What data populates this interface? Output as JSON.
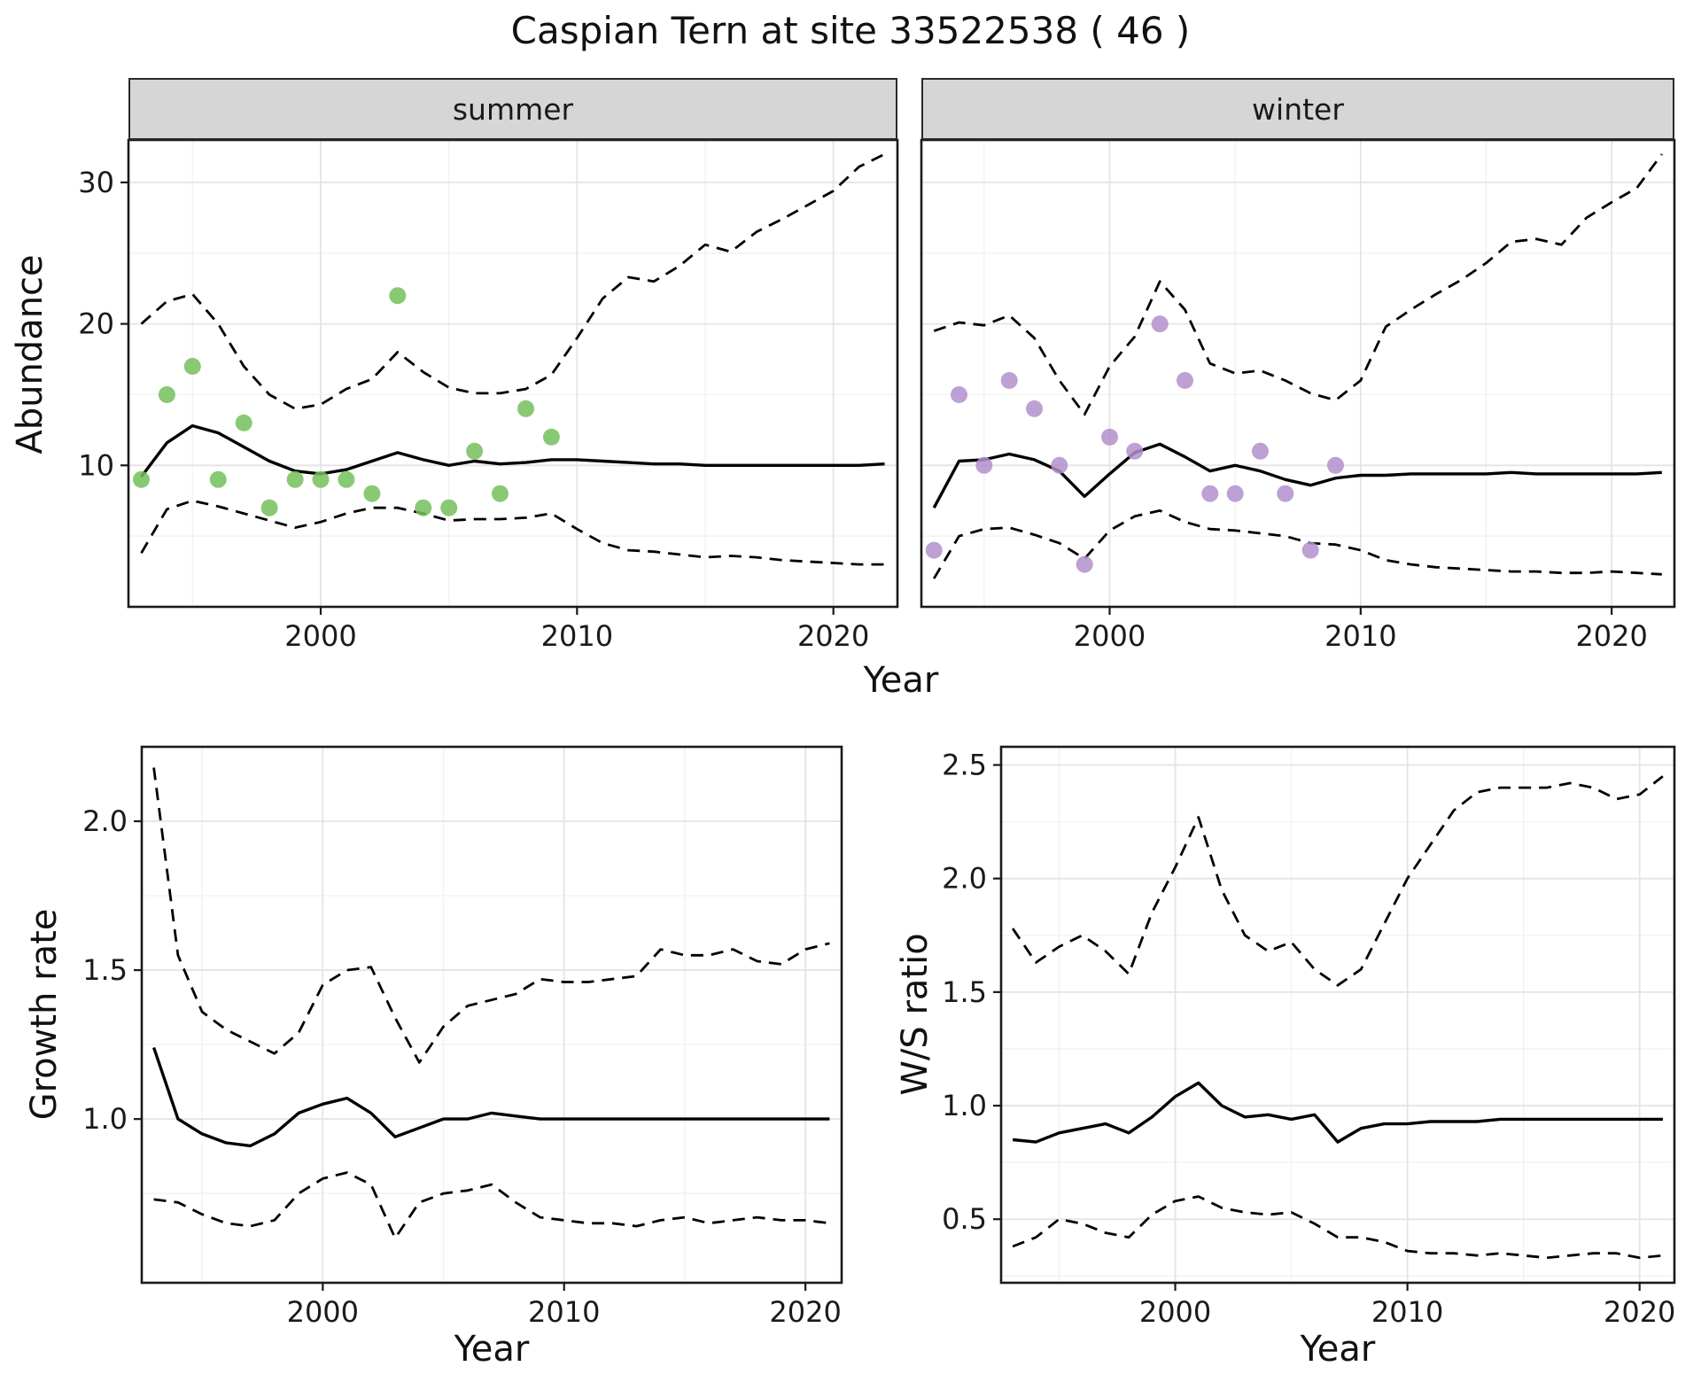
{
  "title": "Caspian Tern at site 33522538 ( 46 )",
  "colors": {
    "summer_points": "#74bf5c",
    "winter_points": "#b28fcd",
    "line": "#000000",
    "grid_major": "#e4e4e4",
    "grid_minor": "#f2f2f2",
    "strip_bg": "#d6d6d6",
    "panel_border": "#1a1a1a"
  },
  "chart_data": [
    {
      "id": "summer_abundance",
      "type": "scatter+line",
      "facet": "summer",
      "xlabel": "Year",
      "ylabel": "Abundance",
      "xlim": [
        1992.5,
        2022.5
      ],
      "ylim": [
        0,
        33
      ],
      "xticks": [
        2000,
        2010,
        2020
      ],
      "xtick_labels": [
        "2000",
        "2010",
        "2020"
      ],
      "yticks": [
        10,
        20,
        30
      ],
      "ytick_labels": [
        "10",
        "20",
        "30"
      ],
      "points": {
        "color": "#74bf5c",
        "years": [
          1993,
          1994,
          1995,
          1996,
          1997,
          1998,
          1999,
          2000,
          2001,
          2002,
          2003,
          2004,
          2005,
          2006,
          2007,
          2008,
          2009
        ],
        "values": [
          9,
          15,
          17,
          9,
          13,
          7,
          9,
          9,
          9,
          8,
          22,
          7,
          7,
          11,
          8,
          14,
          12
        ]
      },
      "series": [
        {
          "name": "median_fit",
          "style": "solid",
          "years": [
            1993,
            1994,
            1995,
            1996,
            1997,
            1998,
            1999,
            2000,
            2001,
            2002,
            2003,
            2004,
            2005,
            2006,
            2007,
            2008,
            2009,
            2010,
            2011,
            2012,
            2013,
            2014,
            2015,
            2016,
            2017,
            2018,
            2019,
            2020,
            2021,
            2022
          ],
          "values": [
            9.2,
            11.6,
            12.8,
            12.3,
            11.3,
            10.3,
            9.6,
            9.4,
            9.7,
            10.3,
            10.9,
            10.4,
            10.0,
            10.3,
            10.1,
            10.2,
            10.4,
            10.4,
            10.3,
            10.2,
            10.1,
            10.1,
            10.0,
            10.0,
            10.0,
            10.0,
            10.0,
            10.0,
            10.0,
            10.1
          ]
        },
        {
          "name": "upper_ci",
          "style": "dashed",
          "years": [
            1993,
            1994,
            1995,
            1996,
            1997,
            1998,
            1999,
            2000,
            2001,
            2002,
            2003,
            2004,
            2005,
            2006,
            2007,
            2008,
            2009,
            2010,
            2011,
            2012,
            2013,
            2014,
            2015,
            2016,
            2017,
            2018,
            2019,
            2020,
            2021,
            2022
          ],
          "values": [
            20.0,
            21.6,
            22.1,
            20.0,
            17.0,
            15.0,
            14.0,
            14.3,
            15.4,
            16.1,
            18.0,
            16.6,
            15.5,
            15.1,
            15.1,
            15.4,
            16.4,
            19.0,
            21.8,
            23.3,
            23.0,
            24.1,
            25.6,
            25.1,
            26.5,
            27.4,
            28.4,
            29.4,
            31.1,
            32.0
          ]
        },
        {
          "name": "lower_ci",
          "style": "dashed",
          "years": [
            1993,
            1994,
            1995,
            1996,
            1997,
            1998,
            1999,
            2000,
            2001,
            2002,
            2003,
            2004,
            2005,
            2006,
            2007,
            2008,
            2009,
            2010,
            2011,
            2012,
            2013,
            2014,
            2015,
            2016,
            2017,
            2018,
            2019,
            2020,
            2021,
            2022
          ],
          "values": [
            3.8,
            6.9,
            7.5,
            7.1,
            6.6,
            6.1,
            5.6,
            6.0,
            6.6,
            7.0,
            7.0,
            6.6,
            6.1,
            6.2,
            6.2,
            6.3,
            6.6,
            5.5,
            4.5,
            4.0,
            3.9,
            3.7,
            3.5,
            3.6,
            3.5,
            3.3,
            3.2,
            3.1,
            3.0,
            3.0
          ]
        }
      ]
    },
    {
      "id": "winter_abundance",
      "type": "scatter+line",
      "facet": "winter",
      "xlabel": "Year",
      "ylabel": "Abundance",
      "xlim": [
        1992.5,
        2022.5
      ],
      "ylim": [
        0,
        33
      ],
      "xticks": [
        2000,
        2010,
        2020
      ],
      "xtick_labels": [
        "2000",
        "2010",
        "2020"
      ],
      "yticks": [
        10,
        20,
        30
      ],
      "ytick_labels": [
        "10",
        "20",
        "30"
      ],
      "points": {
        "color": "#b28fcd",
        "years": [
          1993,
          1994,
          1995,
          1996,
          1997,
          1998,
          1999,
          2000,
          2001,
          2002,
          2003,
          2004,
          2005,
          2006,
          2007,
          2008,
          2009
        ],
        "values": [
          4,
          15,
          10,
          16,
          14,
          10,
          3,
          12,
          11,
          20,
          16,
          8,
          8,
          11,
          8,
          4,
          10
        ]
      },
      "series": [
        {
          "name": "median_fit",
          "style": "solid",
          "years": [
            1993,
            1994,
            1995,
            1996,
            1997,
            1998,
            1999,
            2000,
            2001,
            2002,
            2003,
            2004,
            2005,
            2006,
            2007,
            2008,
            2009,
            2010,
            2011,
            2012,
            2013,
            2014,
            2015,
            2016,
            2017,
            2018,
            2019,
            2020,
            2021,
            2022
          ],
          "values": [
            7.0,
            10.3,
            10.4,
            10.8,
            10.4,
            9.6,
            7.8,
            9.4,
            10.9,
            11.5,
            10.6,
            9.6,
            10.0,
            9.6,
            9.0,
            8.6,
            9.1,
            9.3,
            9.3,
            9.4,
            9.4,
            9.4,
            9.4,
            9.5,
            9.4,
            9.4,
            9.4,
            9.4,
            9.4,
            9.5
          ]
        },
        {
          "name": "upper_ci",
          "style": "dashed",
          "years": [
            1993,
            1994,
            1995,
            1996,
            1997,
            1998,
            1999,
            2000,
            2001,
            2002,
            2003,
            2004,
            2005,
            2006,
            2007,
            2008,
            2009,
            2010,
            2011,
            2012,
            2013,
            2014,
            2015,
            2016,
            2017,
            2018,
            2019,
            2020,
            2021,
            2022
          ],
          "values": [
            19.5,
            20.1,
            19.9,
            20.6,
            19.0,
            16.0,
            13.6,
            17.0,
            19.1,
            23.0,
            21.0,
            17.2,
            16.5,
            16.7,
            16.0,
            15.1,
            14.6,
            16.0,
            19.8,
            21.0,
            22.1,
            23.1,
            24.3,
            25.8,
            26.0,
            25.6,
            27.5,
            28.6,
            29.6,
            32.0
          ]
        },
        {
          "name": "lower_ci",
          "style": "dashed",
          "years": [
            1993,
            1994,
            1995,
            1996,
            1997,
            1998,
            1999,
            2000,
            2001,
            2002,
            2003,
            2004,
            2005,
            2006,
            2007,
            2008,
            2009,
            2010,
            2011,
            2012,
            2013,
            2014,
            2015,
            2016,
            2017,
            2018,
            2019,
            2020,
            2021,
            2022
          ],
          "values": [
            2.0,
            5.0,
            5.5,
            5.6,
            5.1,
            4.5,
            3.4,
            5.4,
            6.4,
            6.8,
            6.0,
            5.5,
            5.4,
            5.2,
            5.0,
            4.5,
            4.4,
            4.0,
            3.3,
            3.0,
            2.8,
            2.7,
            2.6,
            2.5,
            2.5,
            2.4,
            2.4,
            2.5,
            2.4,
            2.3
          ]
        }
      ]
    },
    {
      "id": "growth_rate",
      "type": "line",
      "facet": null,
      "xlabel": "Year",
      "ylabel": "Growth rate",
      "xlim": [
        1992.5,
        2021.5
      ],
      "ylim": [
        0.45,
        2.25
      ],
      "xticks": [
        2000,
        2010,
        2020
      ],
      "xtick_labels": [
        "2000",
        "2010",
        "2020"
      ],
      "yticks": [
        1.0,
        1.5,
        2.0
      ],
      "ytick_labels": [
        "1.0",
        "1.5",
        "2.0"
      ],
      "series": [
        {
          "name": "median_fit",
          "style": "solid",
          "years": [
            1993,
            1994,
            1995,
            1996,
            1997,
            1998,
            1999,
            2000,
            2001,
            2002,
            2003,
            2004,
            2005,
            2006,
            2007,
            2008,
            2009,
            2010,
            2011,
            2012,
            2013,
            2014,
            2015,
            2016,
            2017,
            2018,
            2019,
            2020,
            2021
          ],
          "values": [
            1.24,
            1.0,
            0.95,
            0.92,
            0.91,
            0.95,
            1.02,
            1.05,
            1.07,
            1.02,
            0.94,
            0.97,
            1.0,
            1.0,
            1.02,
            1.01,
            1.0,
            1.0,
            1.0,
            1.0,
            1.0,
            1.0,
            1.0,
            1.0,
            1.0,
            1.0,
            1.0,
            1.0,
            1.0
          ]
        },
        {
          "name": "upper_ci",
          "style": "dashed",
          "years": [
            1993,
            1994,
            1995,
            1996,
            1997,
            1998,
            1999,
            2000,
            2001,
            2002,
            2003,
            2004,
            2005,
            2006,
            2007,
            2008,
            2009,
            2010,
            2011,
            2012,
            2013,
            2014,
            2015,
            2016,
            2017,
            2018,
            2019,
            2020,
            2021
          ],
          "values": [
            2.18,
            1.55,
            1.36,
            1.3,
            1.26,
            1.22,
            1.29,
            1.45,
            1.5,
            1.51,
            1.34,
            1.19,
            1.31,
            1.38,
            1.4,
            1.42,
            1.47,
            1.46,
            1.46,
            1.47,
            1.48,
            1.57,
            1.55,
            1.55,
            1.57,
            1.53,
            1.52,
            1.57,
            1.59
          ]
        },
        {
          "name": "lower_ci",
          "style": "dashed",
          "years": [
            1993,
            1994,
            1995,
            1996,
            1997,
            1998,
            1999,
            2000,
            2001,
            2002,
            2003,
            2004,
            2005,
            2006,
            2007,
            2008,
            2009,
            2010,
            2011,
            2012,
            2013,
            2014,
            2015,
            2016,
            2017,
            2018,
            2019,
            2020,
            2021
          ],
          "values": [
            0.73,
            0.72,
            0.68,
            0.65,
            0.64,
            0.66,
            0.75,
            0.8,
            0.82,
            0.78,
            0.6,
            0.72,
            0.75,
            0.76,
            0.78,
            0.72,
            0.67,
            0.66,
            0.65,
            0.65,
            0.64,
            0.66,
            0.67,
            0.65,
            0.66,
            0.67,
            0.66,
            0.66,
            0.65
          ]
        }
      ]
    },
    {
      "id": "ws_ratio",
      "type": "line",
      "facet": null,
      "xlabel": "Year",
      "ylabel": "W/S ratio",
      "xlim": [
        1992.5,
        2021.5
      ],
      "ylim": [
        0.22,
        2.58
      ],
      "xticks": [
        2000,
        2010,
        2020
      ],
      "xtick_labels": [
        "2000",
        "2010",
        "2020"
      ],
      "yticks": [
        0.5,
        1.0,
        1.5,
        2.0,
        2.5
      ],
      "ytick_labels": [
        "0.5",
        "1.0",
        "1.5",
        "2.0",
        "2.5"
      ],
      "series": [
        {
          "name": "median_fit",
          "style": "solid",
          "years": [
            1993,
            1994,
            1995,
            1996,
            1997,
            1998,
            1999,
            2000,
            2001,
            2002,
            2003,
            2004,
            2005,
            2006,
            2007,
            2008,
            2009,
            2010,
            2011,
            2012,
            2013,
            2014,
            2015,
            2016,
            2017,
            2018,
            2019,
            2020,
            2021
          ],
          "values": [
            0.85,
            0.84,
            0.88,
            0.9,
            0.92,
            0.88,
            0.95,
            1.04,
            1.1,
            1.0,
            0.95,
            0.96,
            0.94,
            0.96,
            0.84,
            0.9,
            0.92,
            0.92,
            0.93,
            0.93,
            0.93,
            0.94,
            0.94,
            0.94,
            0.94,
            0.94,
            0.94,
            0.94,
            0.94
          ]
        },
        {
          "name": "upper_ci",
          "style": "dashed",
          "years": [
            1993,
            1994,
            1995,
            1996,
            1997,
            1998,
            1999,
            2000,
            2001,
            2002,
            2003,
            2004,
            2005,
            2006,
            2007,
            2008,
            2009,
            2010,
            2011,
            2012,
            2013,
            2014,
            2015,
            2016,
            2017,
            2018,
            2019,
            2020,
            2021
          ],
          "values": [
            1.78,
            1.63,
            1.7,
            1.75,
            1.68,
            1.58,
            1.85,
            2.05,
            2.27,
            1.95,
            1.75,
            1.68,
            1.72,
            1.6,
            1.53,
            1.6,
            1.8,
            2.0,
            2.15,
            2.3,
            2.38,
            2.4,
            2.4,
            2.4,
            2.42,
            2.4,
            2.35,
            2.37,
            2.45
          ]
        },
        {
          "name": "lower_ci",
          "style": "dashed",
          "years": [
            1993,
            1994,
            1995,
            1996,
            1997,
            1998,
            1999,
            2000,
            2001,
            2002,
            2003,
            2004,
            2005,
            2006,
            2007,
            2008,
            2009,
            2010,
            2011,
            2012,
            2013,
            2014,
            2015,
            2016,
            2017,
            2018,
            2019,
            2020,
            2021
          ],
          "values": [
            0.38,
            0.42,
            0.5,
            0.48,
            0.44,
            0.42,
            0.52,
            0.58,
            0.6,
            0.55,
            0.53,
            0.52,
            0.53,
            0.48,
            0.42,
            0.42,
            0.4,
            0.36,
            0.35,
            0.35,
            0.34,
            0.35,
            0.34,
            0.33,
            0.34,
            0.35,
            0.35,
            0.33,
            0.34
          ]
        }
      ]
    }
  ]
}
